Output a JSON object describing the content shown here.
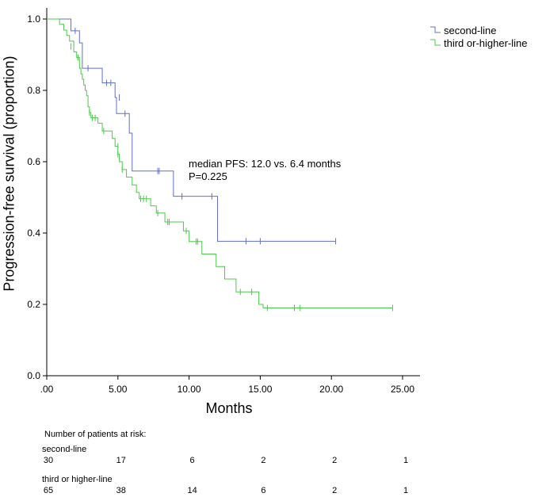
{
  "chart_data": {
    "type": "kaplan-meier",
    "xlabel": "Months",
    "ylabel": "Progression-free survival (proportion)",
    "xlim": [
      0,
      26
    ],
    "ylim": [
      0,
      1.05
    ],
    "xticks": [
      0,
      5,
      10,
      15,
      20,
      25
    ],
    "xtick_labels": [
      ".00",
      "5.00",
      "10.00",
      "15.00",
      "20.00",
      "25.00"
    ],
    "yticks": [
      0,
      0.2,
      0.4,
      0.6,
      0.8,
      1.0
    ],
    "ytick_labels": [
      "0.0",
      "0.2",
      "0.4",
      "0.6",
      "0.8",
      "1.0"
    ],
    "legend_position": "top-right",
    "series": [
      {
        "name": "second-line",
        "color": "#6070C8",
        "steps": [
          [
            0,
            1.0
          ],
          [
            1.7,
            0.967
          ],
          [
            2.3,
            0.933
          ],
          [
            2.5,
            0.862
          ],
          [
            3.9,
            0.821
          ],
          [
            4.8,
            0.78
          ],
          [
            4.9,
            0.735
          ],
          [
            5.8,
            0.68
          ],
          [
            6.0,
            0.574
          ],
          [
            8.9,
            0.503
          ],
          [
            12.0,
            0.377
          ],
          [
            20.3,
            0.377
          ]
        ],
        "censored": [
          [
            2.0,
            0.967
          ],
          [
            2.9,
            0.862
          ],
          [
            4.2,
            0.821
          ],
          [
            4.5,
            0.821
          ],
          [
            5.1,
            0.78
          ],
          [
            5.5,
            0.735
          ],
          [
            7.8,
            0.574
          ],
          [
            7.9,
            0.574
          ],
          [
            9.5,
            0.503
          ],
          [
            11.6,
            0.503
          ],
          [
            14.0,
            0.377
          ],
          [
            15.0,
            0.377
          ],
          [
            20.3,
            0.377
          ]
        ]
      },
      {
        "name": "third or-higher-line",
        "color": "#4CC84C",
        "steps": [
          [
            0,
            1.0
          ],
          [
            0.9,
            0.985
          ],
          [
            1.2,
            0.969
          ],
          [
            1.4,
            0.954
          ],
          [
            1.6,
            0.938
          ],
          [
            1.9,
            0.908
          ],
          [
            2.1,
            0.892
          ],
          [
            2.3,
            0.862
          ],
          [
            2.4,
            0.846
          ],
          [
            2.5,
            0.831
          ],
          [
            2.6,
            0.815
          ],
          [
            2.7,
            0.8
          ],
          [
            2.8,
            0.785
          ],
          [
            2.9,
            0.754
          ],
          [
            3.0,
            0.738
          ],
          [
            3.1,
            0.723
          ],
          [
            3.6,
            0.708
          ],
          [
            3.9,
            0.686
          ],
          [
            4.6,
            0.665
          ],
          [
            4.8,
            0.643
          ],
          [
            5.0,
            0.621
          ],
          [
            5.1,
            0.6
          ],
          [
            5.3,
            0.578
          ],
          [
            5.6,
            0.557
          ],
          [
            6.0,
            0.535
          ],
          [
            6.3,
            0.514
          ],
          [
            6.5,
            0.496
          ],
          [
            7.3,
            0.476
          ],
          [
            7.7,
            0.456
          ],
          [
            8.3,
            0.431
          ],
          [
            9.6,
            0.406
          ],
          [
            10.0,
            0.376
          ],
          [
            10.9,
            0.341
          ],
          [
            11.9,
            0.306
          ],
          [
            12.5,
            0.271
          ],
          [
            13.3,
            0.235
          ],
          [
            14.9,
            0.2
          ],
          [
            15.2,
            0.19
          ],
          [
            24.3,
            0.19
          ]
        ],
        "censored": [
          [
            1.7,
            0.923
          ],
          [
            2.2,
            0.892
          ],
          [
            3.0,
            0.738
          ],
          [
            3.2,
            0.723
          ],
          [
            3.4,
            0.723
          ],
          [
            4.0,
            0.686
          ],
          [
            5.0,
            0.643
          ],
          [
            5.0,
            0.621
          ],
          [
            5.3,
            0.578
          ],
          [
            6.6,
            0.496
          ],
          [
            6.8,
            0.496
          ],
          [
            7.0,
            0.496
          ],
          [
            7.8,
            0.456
          ],
          [
            8.5,
            0.431
          ],
          [
            8.6,
            0.431
          ],
          [
            9.8,
            0.406
          ],
          [
            10.5,
            0.376
          ],
          [
            10.6,
            0.376
          ],
          [
            13.6,
            0.235
          ],
          [
            14.4,
            0.235
          ],
          [
            15.5,
            0.19
          ],
          [
            17.4,
            0.19
          ],
          [
            17.8,
            0.19
          ],
          [
            24.3,
            0.19
          ]
        ]
      }
    ],
    "annotations": [
      "median PFS: 12.0 vs. 6.4 months",
      "P=0.225"
    ],
    "risk_table": {
      "title": "Number of patients at risk:",
      "times": [
        0,
        5,
        10,
        15,
        20,
        25
      ],
      "groups": [
        {
          "name": "second-line",
          "values": [
            "30",
            "17",
            "6",
            "2",
            "2",
            "1"
          ]
        },
        {
          "name": "third or higher-line",
          "values": [
            "65",
            "38",
            "14",
            "6",
            "2",
            "1"
          ]
        }
      ]
    }
  }
}
